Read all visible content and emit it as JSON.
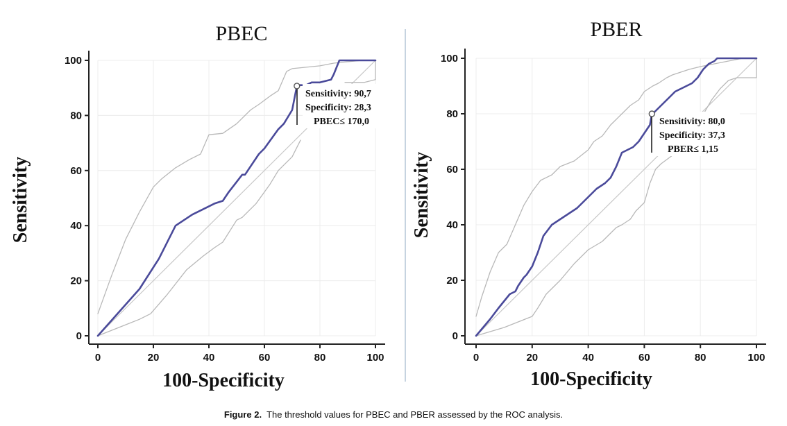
{
  "colors": {
    "roc_line": "#4a4a9a",
    "ci_line": "#b8b8b8",
    "diagonal": "#c8c8c8",
    "grid": "#ececec",
    "axis": "#222222",
    "divider": "#9fb6cc"
  },
  "caption": {
    "label": "Figure 2.",
    "text": "The threshold values for PBEC and PBER assessed by the ROC analysis."
  },
  "chart_data": [
    {
      "type": "line",
      "title": "PBEC",
      "xlabel": "100-Specificity",
      "ylabel": "Sensitivity",
      "xlim": [
        0,
        100
      ],
      "ylim": [
        0,
        100
      ],
      "xticks": [
        "0",
        "20",
        "40",
        "60",
        "80",
        "100"
      ],
      "yticks": [
        "0",
        "20",
        "40",
        "60",
        "80",
        "100"
      ],
      "grid": true,
      "series": [
        {
          "role": "roc",
          "x": [
            0,
            15,
            22,
            28,
            34,
            40,
            42,
            45,
            47,
            52,
            53,
            58,
            60,
            65,
            67,
            70,
            71.7,
            72,
            75,
            77,
            80,
            84,
            85,
            87,
            90,
            95,
            100
          ],
          "y": [
            0,
            17,
            28,
            40,
            44,
            47,
            48,
            49,
            52,
            58.5,
            58.5,
            66,
            68,
            75,
            77,
            82,
            90.7,
            91,
            91,
            92,
            92,
            93,
            95,
            100,
            100,
            100,
            100
          ]
        },
        {
          "role": "ci_upper",
          "x": [
            0,
            5,
            10,
            15,
            20,
            23,
            28,
            33,
            37,
            40,
            45,
            50,
            55,
            58,
            62,
            65,
            68,
            70,
            75,
            80,
            85,
            90,
            95,
            100
          ],
          "y": [
            8,
            22,
            35,
            45,
            54,
            57,
            61,
            64,
            66,
            73,
            73.5,
            77,
            82,
            84,
            87,
            89,
            96,
            97,
            97.5,
            98,
            99,
            99.5,
            100,
            100
          ]
        },
        {
          "role": "ci_lower",
          "x": [
            0,
            10,
            15,
            19,
            25,
            32,
            38,
            42,
            45,
            50,
            52,
            57,
            62,
            65,
            70,
            73
          ],
          "y": [
            0,
            4,
            6,
            8,
            15,
            24,
            29,
            32,
            34,
            42,
            43,
            48,
            55,
            60,
            65,
            71
          ]
        },
        {
          "role": "ci_tail",
          "x": [
            89,
            96,
            100,
            100
          ],
          "y": [
            92,
            92,
            93,
            100
          ]
        }
      ],
      "diagonal": true,
      "annotation": {
        "point": [
          71.7,
          90.7
        ],
        "lines": [
          "Sensitivity: 90,7",
          "Specificity: 28,3",
          "PBEC≤ 170,0"
        ]
      }
    },
    {
      "type": "line",
      "title": "PBER",
      "xlabel": "100-Specificity",
      "ylabel": "Sensitivity",
      "xlim": [
        0,
        100
      ],
      "ylim": [
        0,
        100
      ],
      "xticks": [
        "0",
        "20",
        "40",
        "60",
        "80",
        "100"
      ],
      "yticks": [
        "0",
        "20",
        "40",
        "60",
        "80",
        "100"
      ],
      "grid": true,
      "series": [
        {
          "role": "roc",
          "x": [
            0,
            5,
            8,
            12,
            14,
            15,
            17,
            18,
            20,
            22,
            24,
            27,
            30,
            33,
            36,
            38,
            40,
            43,
            46,
            48,
            50,
            52,
            54,
            56,
            58,
            60,
            62,
            62.7,
            63,
            65,
            67,
            69,
            71,
            73,
            75,
            77,
            79,
            81,
            83,
            85,
            86,
            90,
            100
          ],
          "y": [
            0,
            6,
            10,
            15,
            16,
            18,
            21,
            22,
            25,
            30,
            36,
            40,
            42,
            44,
            46,
            48,
            50,
            53,
            55,
            57,
            61,
            66,
            67,
            68,
            70,
            73,
            76,
            80,
            80,
            82,
            84,
            86,
            88,
            89,
            90,
            91,
            93,
            96,
            98,
            99,
            100,
            100,
            100
          ]
        },
        {
          "role": "ci_upper",
          "x": [
            0,
            2,
            5,
            8,
            11,
            14,
            17,
            20,
            23,
            27,
            30,
            35,
            40,
            42,
            45,
            48,
            52,
            55,
            58,
            60,
            63,
            65,
            68,
            70,
            73,
            76,
            80,
            85,
            90,
            95,
            100
          ],
          "y": [
            7,
            14,
            23,
            30,
            33,
            40,
            47,
            52,
            56,
            58,
            61,
            63,
            67,
            70,
            72,
            76,
            80,
            83,
            85,
            88,
            90,
            91,
            93,
            94,
            95,
            96,
            97,
            98,
            99,
            100,
            100
          ]
        },
        {
          "role": "ci_lower",
          "x": [
            0,
            10,
            15,
            20,
            22,
            25,
            30,
            35,
            40,
            45,
            48,
            50,
            52,
            55,
            57,
            60,
            62,
            64,
            66,
            70,
            75,
            78,
            80,
            84,
            87,
            90,
            93,
            96,
            100
          ],
          "y": [
            0,
            3,
            5,
            7,
            10,
            15,
            20,
            26,
            31,
            34,
            37,
            39,
            40,
            42,
            45,
            48,
            55,
            60,
            62,
            65,
            70,
            74,
            78,
            85,
            89,
            92,
            93,
            93,
            93
          ]
        },
        {
          "role": "ci_tail",
          "x": [
            100,
            100
          ],
          "y": [
            93,
            100
          ]
        }
      ],
      "diagonal": true,
      "annotation": {
        "point": [
          62.7,
          80.0
        ],
        "lines": [
          "Sensitivity: 80,0",
          "Specificity: 37,3",
          "PBER≤ 1,15"
        ]
      }
    }
  ]
}
